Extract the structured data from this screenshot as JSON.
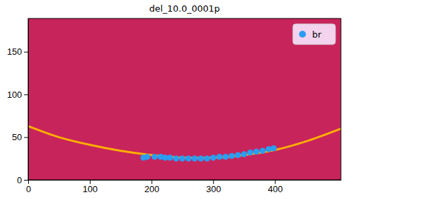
{
  "chart_data": {
    "type": "scatter",
    "title": "del_10.0_0001p",
    "xlim": [
      0,
      507
    ],
    "ylim": [
      0,
      189
    ],
    "xticks": [
      0,
      100,
      200,
      300,
      400
    ],
    "yticks": [
      0,
      50,
      100,
      150
    ],
    "legend": "upper right",
    "grid": false,
    "series": [
      {
        "type": "line",
        "color": "#ffb000",
        "x": [
          0,
          50,
          100,
          150,
          200,
          250,
          300,
          350,
          400,
          450,
          507
        ],
        "y": [
          63,
          50,
          41,
          34,
          29,
          26,
          26,
          29,
          35,
          45,
          60
        ]
      },
      {
        "name": "br",
        "type": "scatter",
        "marker": "circle",
        "color": "#2a9df4",
        "x": [
          187,
          193,
          205,
          215,
          222,
          230,
          240,
          250,
          260,
          270,
          280,
          290,
          300,
          310,
          320,
          330,
          340,
          350,
          360,
          370,
          380,
          390,
          398
        ],
        "y": [
          26,
          27,
          27,
          27,
          26,
          26,
          25,
          25,
          25,
          25,
          25,
          25,
          26,
          27,
          27,
          28,
          29,
          30,
          32,
          33,
          34,
          36,
          37
        ]
      }
    ]
  }
}
